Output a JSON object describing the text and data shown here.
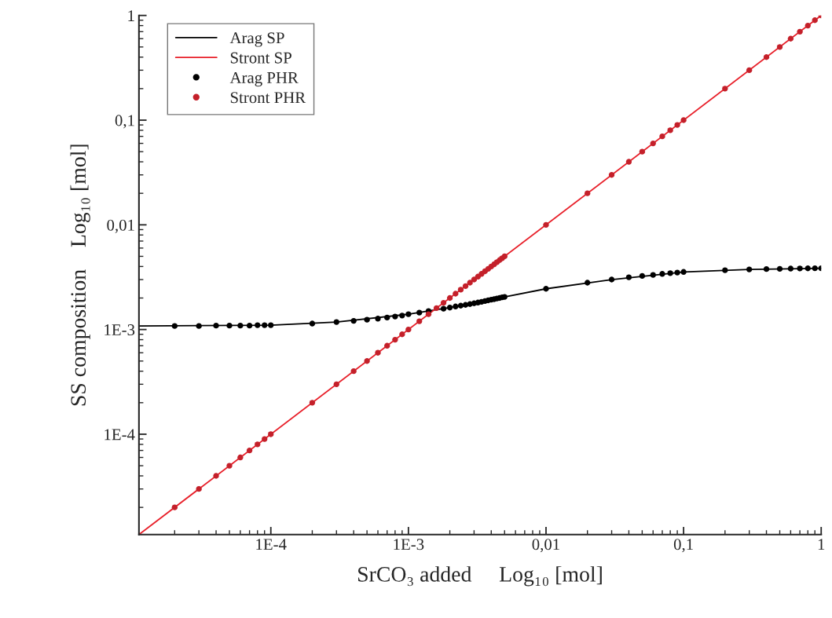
{
  "chart_data": {
    "type": "line",
    "xlabel": "SrCO₃ added     Log₁₀ [mol]",
    "ylabel": "SS composition    Log₁₀ [mol]",
    "log": "xy",
    "xlim": [
      1.1e-05,
      1
    ],
    "ylim": [
      1.1e-05,
      1
    ],
    "xticks": [
      {
        "value": 0.0001,
        "label": "1E-4"
      },
      {
        "value": 0.001,
        "label": "1E-3"
      },
      {
        "value": 0.01,
        "label": "0,01"
      },
      {
        "value": 0.1,
        "label": "0,1"
      },
      {
        "value": 1,
        "label": "1"
      }
    ],
    "yticks": [
      {
        "value": 0.0001,
        "label": "1E-4"
      },
      {
        "value": 0.001,
        "label": "1E-3"
      },
      {
        "value": 0.01,
        "label": "0,01"
      },
      {
        "value": 0.1,
        "label": "0,1"
      },
      {
        "value": 1,
        "label": "1"
      }
    ],
    "grid": false,
    "legend": "top left",
    "series": [
      {
        "name": "Arag SP",
        "color": "#000000",
        "x": [
          1.1e-05,
          0.0001,
          0.0003,
          0.001,
          0.002,
          0.005,
          0.01,
          0.03,
          0.1,
          0.3,
          1
        ],
        "values": [
          0.00108,
          0.0011,
          0.00118,
          0.0014,
          0.00162,
          0.00205,
          0.00245,
          0.003,
          0.00355,
          0.00375,
          0.00385
        ]
      },
      {
        "name": "Stront SP",
        "color": "#e8202a",
        "x": [
          1.1e-05,
          1
        ],
        "values": [
          1.1e-05,
          1
        ]
      },
      {
        "name": "Arag PHR",
        "type": "scatter",
        "marker": "circle",
        "color": "#000000",
        "x": [
          2e-05,
          3e-05,
          4e-05,
          5e-05,
          6e-05,
          7e-05,
          8e-05,
          9e-05,
          0.0001,
          0.0002,
          0.0003,
          0.0004,
          0.0005,
          0.0006,
          0.0007,
          0.0008,
          0.0009,
          0.001,
          0.0012,
          0.0014,
          0.0016,
          0.0018,
          0.002,
          0.0022,
          0.0024,
          0.0026,
          0.0028,
          0.003,
          0.0032,
          0.0034,
          0.0036,
          0.0038,
          0.004,
          0.0042,
          0.0044,
          0.0046,
          0.0048,
          0.005,
          0.01,
          0.02,
          0.03,
          0.04,
          0.05,
          0.06,
          0.07,
          0.08,
          0.09,
          0.1,
          0.2,
          0.3,
          0.4,
          0.5,
          0.6,
          0.7,
          0.8,
          0.9,
          1
        ],
        "values": [
          0.00108,
          0.00108,
          0.00109,
          0.00109,
          0.00109,
          0.00109,
          0.0011,
          0.0011,
          0.0011,
          0.00114,
          0.00118,
          0.00121,
          0.00124,
          0.00127,
          0.0013,
          0.00133,
          0.00136,
          0.0014,
          0.00145,
          0.0015,
          null,
          0.00158,
          0.00162,
          0.00166,
          0.00169,
          0.00172,
          0.00175,
          0.00178,
          0.00181,
          0.00184,
          0.00187,
          0.0019,
          0.00193,
          0.00195,
          0.00198,
          0.002,
          0.00203,
          0.00205,
          0.00245,
          0.0028,
          0.003,
          0.00315,
          0.00325,
          0.00332,
          0.0034,
          0.00345,
          0.0035,
          0.00355,
          0.00368,
          0.00375,
          0.00378,
          0.0038,
          0.00382,
          0.00383,
          0.00384,
          0.00385,
          0.00385
        ]
      },
      {
        "name": "Stront PHR",
        "type": "scatter",
        "marker": "circle",
        "color": "#c4202a",
        "x": [
          2e-05,
          3e-05,
          4e-05,
          5e-05,
          6e-05,
          7e-05,
          8e-05,
          9e-05,
          0.0001,
          0.0002,
          0.0003,
          0.0004,
          0.0005,
          0.0006,
          0.0007,
          0.0008,
          0.0009,
          0.001,
          0.0012,
          0.0014,
          0.0016,
          0.0018,
          0.002,
          0.0022,
          0.0024,
          0.0026,
          0.0028,
          0.003,
          0.0032,
          0.0034,
          0.0036,
          0.0038,
          0.004,
          0.0042,
          0.0044,
          0.0046,
          0.0048,
          0.005,
          0.01,
          0.02,
          0.03,
          0.04,
          0.05,
          0.06,
          0.07,
          0.08,
          0.09,
          0.1,
          0.2,
          0.3,
          0.4,
          0.5,
          0.6,
          0.7,
          0.8,
          0.9,
          1
        ],
        "values": [
          2e-05,
          3e-05,
          4e-05,
          5e-05,
          6e-05,
          7e-05,
          8e-05,
          9e-05,
          0.0001,
          0.0002,
          0.0003,
          0.0004,
          0.0005,
          0.0006,
          0.0007,
          0.0008,
          0.0009,
          0.001,
          0.0012,
          0.0014,
          0.0016,
          0.0018,
          0.002,
          0.0022,
          0.0024,
          0.0026,
          0.0028,
          0.003,
          0.0032,
          0.0034,
          0.0036,
          0.0038,
          0.004,
          0.0042,
          0.0044,
          0.0046,
          0.0048,
          0.005,
          0.01,
          0.02,
          0.03,
          0.04,
          0.05,
          0.06,
          0.07,
          0.08,
          0.09,
          0.1,
          0.2,
          0.3,
          0.4,
          0.5,
          0.6,
          0.7,
          0.8,
          0.9,
          1
        ]
      }
    ]
  }
}
